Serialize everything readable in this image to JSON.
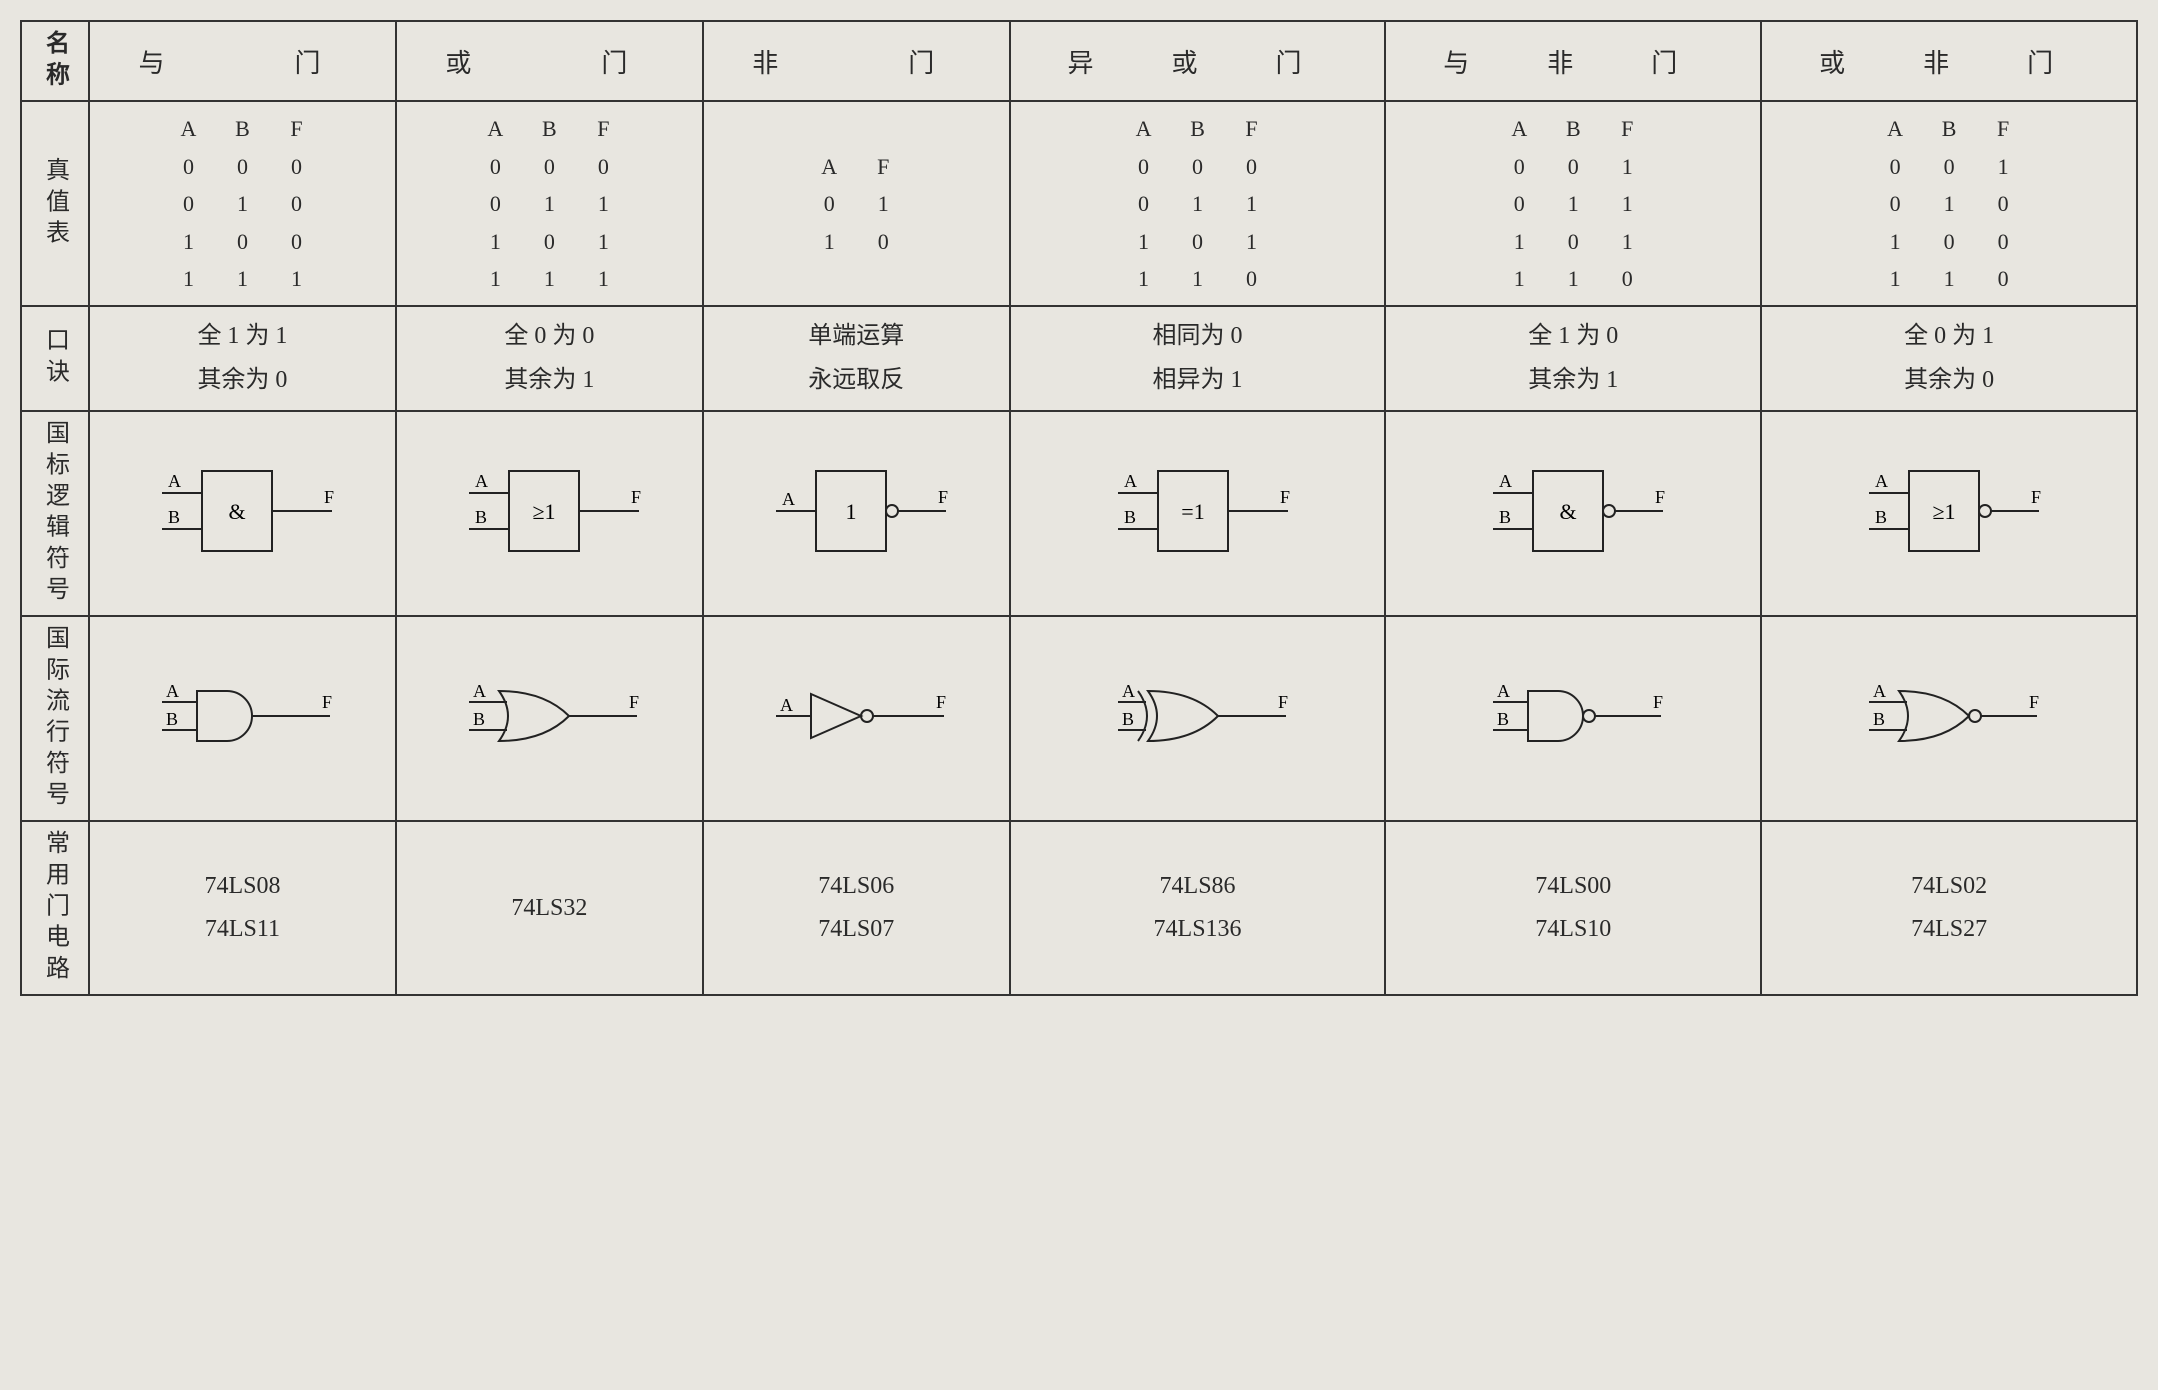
{
  "rowLabels": {
    "name": "名称",
    "truth": "真值表",
    "mnemonic": "口诀",
    "iecSymbol": "国标逻辑符号",
    "intlSymbol": "国际流行符号",
    "chips": "常用门电路"
  },
  "styling": {
    "background_color": "#e8e6e0",
    "border_color": "#333333",
    "text_color": "#2a2a2a",
    "header_fontsize": 26,
    "body_fontsize": 24,
    "truth_fontsize": 22,
    "svg_stroke": "#222222",
    "svg_stroke_width": 2,
    "label_font": "Times New Roman"
  },
  "gates": [
    {
      "name": "与　　门",
      "truthHeaders": [
        "A",
        "B",
        "F"
      ],
      "truthRows": [
        [
          "0",
          "0",
          "0"
        ],
        [
          "0",
          "1",
          "0"
        ],
        [
          "1",
          "0",
          "0"
        ],
        [
          "1",
          "1",
          "1"
        ]
      ],
      "mnemonic": [
        "全 1 为 1",
        "其余为 0"
      ],
      "iec": {
        "inputs": [
          "A",
          "B"
        ],
        "op": "&",
        "negated": false
      },
      "intlType": "and",
      "intlInputs": [
        "A",
        "B"
      ],
      "chips": [
        "74LS08",
        "74LS11"
      ]
    },
    {
      "name": "或　　门",
      "truthHeaders": [
        "A",
        "B",
        "F"
      ],
      "truthRows": [
        [
          "0",
          "0",
          "0"
        ],
        [
          "0",
          "1",
          "1"
        ],
        [
          "1",
          "0",
          "1"
        ],
        [
          "1",
          "1",
          "1"
        ]
      ],
      "mnemonic": [
        "全 0 为 0",
        "其余为 1"
      ],
      "iec": {
        "inputs": [
          "A",
          "B"
        ],
        "op": "≥1",
        "negated": false
      },
      "intlType": "or",
      "intlInputs": [
        "A",
        "B"
      ],
      "chips": [
        "74LS32"
      ]
    },
    {
      "name": "非　　门",
      "truthHeaders": [
        "A",
        "F"
      ],
      "truthRows": [
        [
          "0",
          "1"
        ],
        [
          "1",
          "0"
        ]
      ],
      "mnemonic": [
        "单端运算",
        "永远取反"
      ],
      "iec": {
        "inputs": [
          "A"
        ],
        "op": "1",
        "negated": true
      },
      "intlType": "not",
      "intlInputs": [
        "A"
      ],
      "chips": [
        "74LS06",
        "74LS07"
      ]
    },
    {
      "name": "异　或　门",
      "truthHeaders": [
        "A",
        "B",
        "F"
      ],
      "truthRows": [
        [
          "0",
          "0",
          "0"
        ],
        [
          "0",
          "1",
          "1"
        ],
        [
          "1",
          "0",
          "1"
        ],
        [
          "1",
          "1",
          "0"
        ]
      ],
      "mnemonic": [
        "相同为 0",
        "相异为 1"
      ],
      "iec": {
        "inputs": [
          "A",
          "B"
        ],
        "op": "=1",
        "negated": false
      },
      "intlType": "xor",
      "intlInputs": [
        "A",
        "B"
      ],
      "chips": [
        "74LS86",
        "74LS136"
      ]
    },
    {
      "name": "与　非　门",
      "truthHeaders": [
        "A",
        "B",
        "F"
      ],
      "truthRows": [
        [
          "0",
          "0",
          "1"
        ],
        [
          "0",
          "1",
          "1"
        ],
        [
          "1",
          "0",
          "1"
        ],
        [
          "1",
          "1",
          "0"
        ]
      ],
      "mnemonic": [
        "全 1 为 0",
        "其余为 1"
      ],
      "iec": {
        "inputs": [
          "A",
          "B"
        ],
        "op": "&",
        "negated": true
      },
      "intlType": "nand",
      "intlInputs": [
        "A",
        "B"
      ],
      "chips": [
        "74LS00",
        "74LS10"
      ]
    },
    {
      "name": "或　非　门",
      "truthHeaders": [
        "A",
        "B",
        "F"
      ],
      "truthRows": [
        [
          "0",
          "0",
          "1"
        ],
        [
          "0",
          "1",
          "0"
        ],
        [
          "1",
          "0",
          "0"
        ],
        [
          "1",
          "1",
          "0"
        ]
      ],
      "mnemonic": [
        "全 0 为 1",
        "其余为 0"
      ],
      "iec": {
        "inputs": [
          "A",
          "B"
        ],
        "op": "≥1",
        "negated": true
      },
      "intlType": "nor",
      "intlInputs": [
        "A",
        "B"
      ],
      "chips": [
        "74LS02",
        "74LS27"
      ]
    }
  ]
}
